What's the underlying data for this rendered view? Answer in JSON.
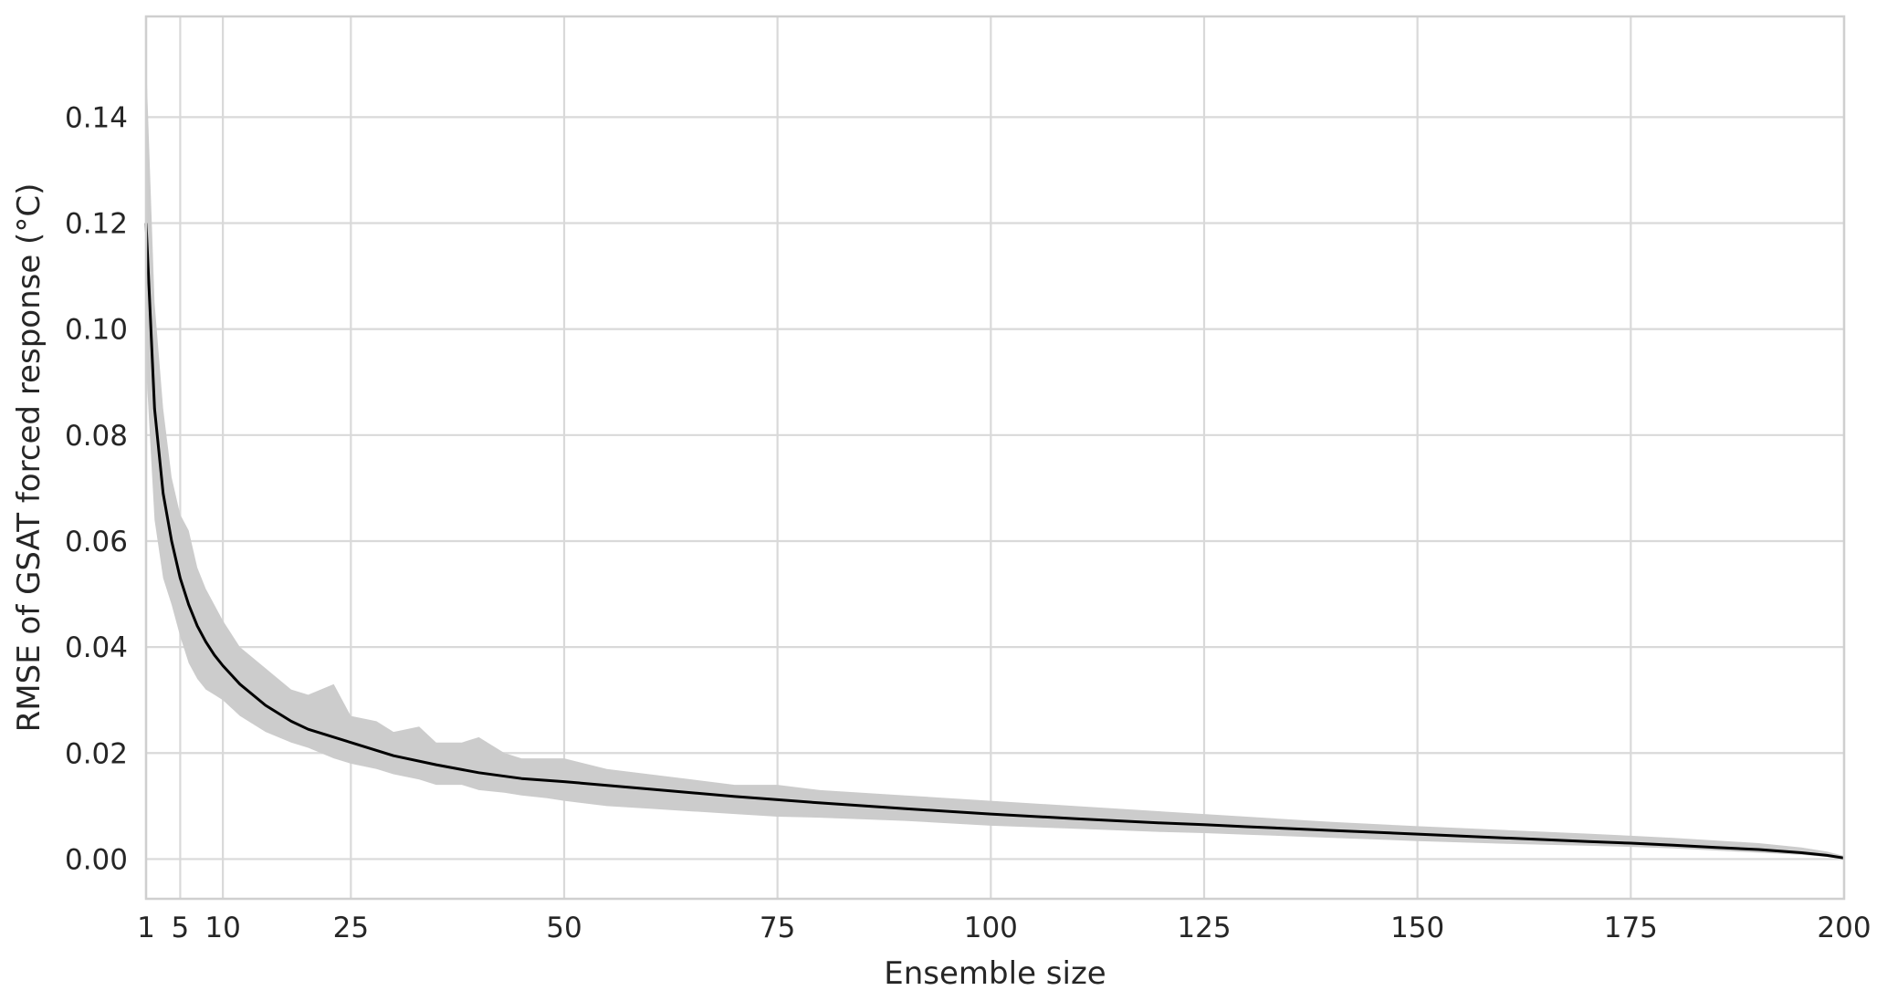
{
  "chart_data": {
    "type": "line",
    "title": "",
    "xlabel": "Ensemble size",
    "ylabel": "RMSE of GSAT forced response ( $^{\\circ}$C)",
    "ylabel_display": "RMSE of GSAT forced response (°C)",
    "xlim": [
      1,
      200
    ],
    "ylim": [
      -0.0075,
      0.159
    ],
    "xticks": [
      1,
      5,
      10,
      25,
      50,
      75,
      100,
      125,
      150,
      175,
      200
    ],
    "xtick_labels": [
      "1",
      "5",
      "10",
      "25",
      "50",
      "75",
      "100",
      "125",
      "150",
      "175",
      "200"
    ],
    "yticks": [
      0.0,
      0.02,
      0.04,
      0.06,
      0.08,
      0.1,
      0.12,
      0.14
    ],
    "ytick_labels": [
      "0.00",
      "0.02",
      "0.04",
      "0.06",
      "0.08",
      "0.10",
      "0.12",
      "0.14"
    ],
    "grid": true,
    "legend": "none",
    "colors": {
      "line": "#000000",
      "band": "#cccccc",
      "grid": "#d9d9d9"
    },
    "series": [
      {
        "kind": "mean-line",
        "x": [
          1,
          2,
          3,
          4,
          5,
          6,
          7,
          8,
          9,
          10,
          12,
          15,
          18,
          20,
          25,
          30,
          35,
          40,
          45,
          50,
          60,
          70,
          75,
          80,
          90,
          100,
          110,
          120,
          125,
          130,
          140,
          150,
          160,
          170,
          175,
          180,
          185,
          190,
          195,
          198,
          200
        ],
        "values": [
          0.12,
          0.085,
          0.069,
          0.06,
          0.053,
          0.048,
          0.044,
          0.041,
          0.0385,
          0.0365,
          0.033,
          0.029,
          0.026,
          0.0245,
          0.022,
          0.0195,
          0.0178,
          0.0163,
          0.0152,
          0.0146,
          0.0132,
          0.0118,
          0.0112,
          0.0106,
          0.0095,
          0.0085,
          0.0076,
          0.0068,
          0.0065,
          0.0061,
          0.0054,
          0.0047,
          0.004,
          0.0033,
          0.003,
          0.0026,
          0.0022,
          0.0018,
          0.0012,
          0.0007,
          0.0002
        ]
      },
      {
        "kind": "range-band",
        "x": [
          1,
          2,
          3,
          4,
          5,
          6,
          7,
          8,
          9,
          10,
          12,
          15,
          18,
          20,
          23,
          25,
          28,
          30,
          33,
          35,
          38,
          40,
          43,
          45,
          48,
          50,
          55,
          60,
          65,
          70,
          75,
          80,
          90,
          100,
          110,
          120,
          125,
          130,
          140,
          150,
          160,
          170,
          175,
          180,
          185,
          190,
          195,
          198,
          200
        ],
        "upper": [
          0.151,
          0.105,
          0.085,
          0.072,
          0.065,
          0.062,
          0.055,
          0.051,
          0.048,
          0.045,
          0.04,
          0.036,
          0.032,
          0.031,
          0.033,
          0.027,
          0.026,
          0.024,
          0.025,
          0.022,
          0.022,
          0.023,
          0.02,
          0.019,
          0.019,
          0.019,
          0.017,
          0.016,
          0.015,
          0.014,
          0.014,
          0.013,
          0.012,
          0.011,
          0.01,
          0.009,
          0.0085,
          0.008,
          0.007,
          0.0062,
          0.0055,
          0.0048,
          0.0044,
          0.004,
          0.0035,
          0.003,
          0.0022,
          0.0014,
          0.0006
        ],
        "lower": [
          0.093,
          0.064,
          0.053,
          0.048,
          0.042,
          0.037,
          0.034,
          0.032,
          0.031,
          0.03,
          0.027,
          0.024,
          0.022,
          0.021,
          0.019,
          0.018,
          0.017,
          0.016,
          0.015,
          0.014,
          0.014,
          0.013,
          0.0125,
          0.012,
          0.0115,
          0.011,
          0.01,
          0.0095,
          0.009,
          0.0085,
          0.008,
          0.0078,
          0.0072,
          0.0063,
          0.0057,
          0.0051,
          0.0049,
          0.0046,
          0.004,
          0.0034,
          0.0029,
          0.0025,
          0.0023,
          0.002,
          0.0016,
          0.0012,
          0.0008,
          0.0004,
          0.0
        ]
      }
    ]
  }
}
